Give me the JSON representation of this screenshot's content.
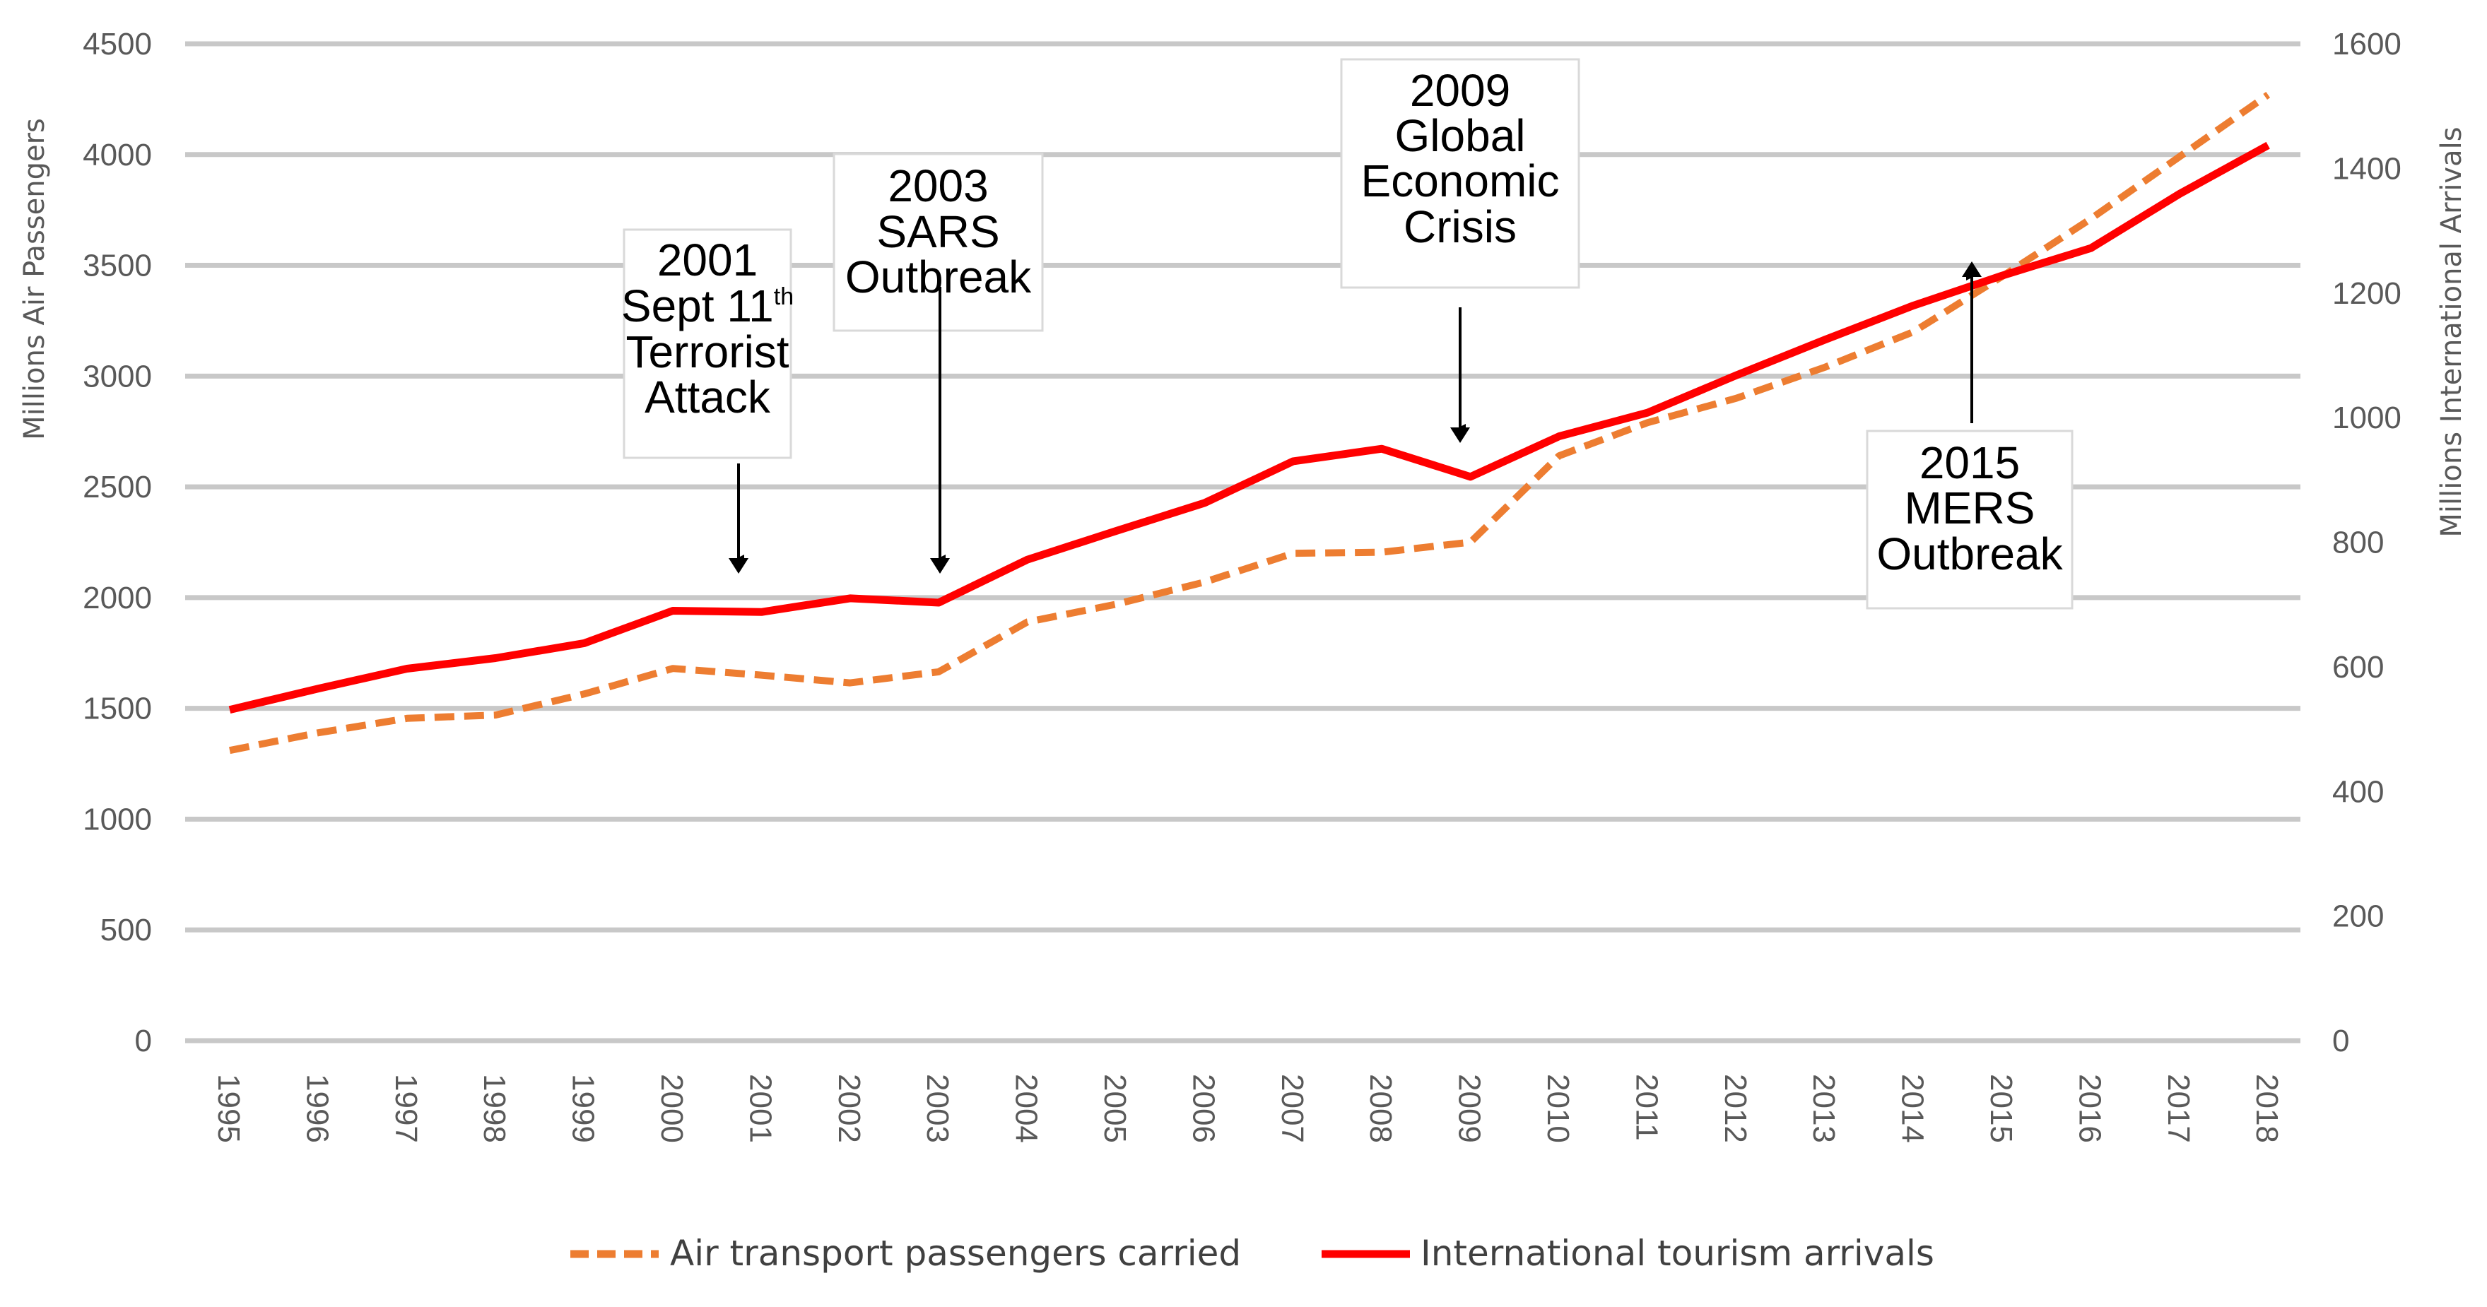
{
  "chart_data": {
    "type": "line",
    "title": "",
    "xlabel": "",
    "ylabel": "Millions Air Passengers",
    "y2label": "Millions International Arrivals",
    "x": [
      "1995",
      "1996",
      "1997",
      "1998",
      "1999",
      "2000",
      "2001",
      "2002",
      "2003",
      "2004",
      "2005",
      "2006",
      "2007",
      "2008",
      "2009",
      "2010",
      "2011",
      "2012",
      "2013",
      "2014",
      "2015",
      "2016",
      "2017",
      "2018"
    ],
    "ylim": [
      0,
      4500
    ],
    "y2lim": [
      0,
      1600
    ],
    "yticks": [
      "0",
      "500",
      "1000",
      "1500",
      "2000",
      "2500",
      "3000",
      "3500",
      "4000",
      "4500"
    ],
    "y2ticks": [
      "0",
      "200",
      "400",
      "600",
      "800",
      "1000",
      "1200",
      "1400",
      "1600"
    ],
    "grid": true,
    "legend_position": "bottom",
    "series": [
      {
        "name": "Air transport passengers carried",
        "axis": "left",
        "style": "dashed",
        "color": "#ED7D31",
        "values": [
          1310,
          1390,
          1455,
          1470,
          1565,
          1680,
          1650,
          1615,
          1665,
          1890,
          1970,
          2070,
          2200,
          2205,
          2250,
          2640,
          2790,
          2900,
          3040,
          3200,
          3450,
          3710,
          3990,
          4270
        ]
      },
      {
        "name": "International tourism arrivals",
        "axis": "right",
        "style": "solid",
        "color": "#FF0000",
        "values": [
          531,
          565,
          597,
          614,
          638,
          690,
          688,
          710,
          703,
          772,
          818,
          863,
          930,
          950,
          905,
          970,
          1008,
          1068,
          1125,
          1180,
          1228,
          1272,
          1359,
          1437
        ]
      }
    ],
    "annotations": [
      {
        "year": "2001",
        "lines": [
          "2001",
          "Sept 11",
          "Terrorist",
          "Attack"
        ],
        "superscript": "th",
        "arrow": "down"
      },
      {
        "year": "2003",
        "lines": [
          "2003",
          "SARS",
          "Outbreak"
        ],
        "arrow": "down"
      },
      {
        "year": "2009",
        "lines": [
          "2009",
          "Global",
          "Economic",
          "Crisis"
        ],
        "arrow": "down"
      },
      {
        "year": "2015",
        "lines": [
          "2015",
          "MERS",
          "Outbreak"
        ],
        "arrow": "up"
      }
    ]
  }
}
